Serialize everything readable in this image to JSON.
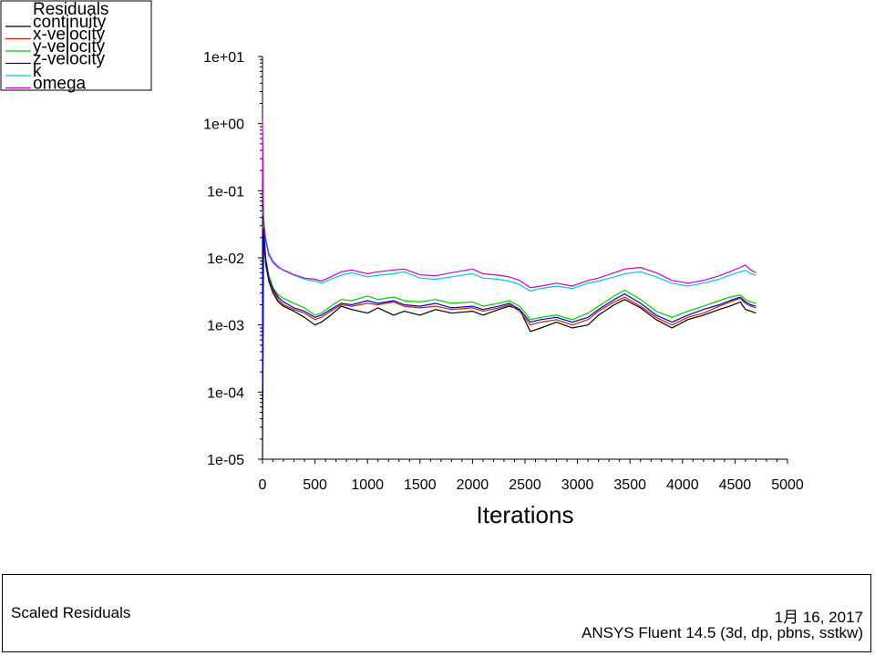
{
  "chart_data": {
    "type": "line",
    "title": "Scaled Residuals",
    "xlabel": "Iterations",
    "ylabel": "",
    "xlim": [
      0,
      5000
    ],
    "ylim": [
      1e-05,
      10
    ],
    "yscale": "log",
    "grid": false,
    "legend_title": "Residuals",
    "legend_position": "top-left",
    "x_ticks": [
      "0",
      "500",
      "1000",
      "1500",
      "2000",
      "2500",
      "3000",
      "3500",
      "4000",
      "4500",
      "5000"
    ],
    "y_ticks": [
      "1e+01",
      "1e+00",
      "1e-01",
      "1e-02",
      "1e-03",
      "1e-04",
      "1e-05"
    ],
    "series": [
      {
        "name": "continuity",
        "color": "#000000",
        "x": [
          0,
          10,
          30,
          60,
          100,
          150,
          200,
          300,
          400,
          500,
          560,
          650,
          750,
          850,
          1000,
          1100,
          1250,
          1350,
          1500,
          1650,
          1800,
          2000,
          2100,
          2250,
          2350,
          2450,
          2550,
          2650,
          2800,
          2950,
          3100,
          3200,
          3350,
          3450,
          3600,
          3750,
          3900,
          4050,
          4200,
          4350,
          4450,
          4550,
          4600,
          4650,
          4700
        ],
        "y": [
          1e-05,
          0.02,
          0.008,
          0.0045,
          0.003,
          0.0022,
          0.0019,
          0.0016,
          0.0013,
          0.001,
          0.0011,
          0.0014,
          0.0019,
          0.0017,
          0.0015,
          0.0018,
          0.0014,
          0.0016,
          0.0014,
          0.0017,
          0.0015,
          0.0016,
          0.0014,
          0.0017,
          0.0019,
          0.0017,
          0.0008,
          0.0009,
          0.0011,
          0.0009,
          0.001,
          0.0014,
          0.002,
          0.0024,
          0.0018,
          0.0012,
          0.0009,
          0.0012,
          0.0014,
          0.0017,
          0.0019,
          0.0022,
          0.0017,
          0.0016,
          0.0015
        ]
      },
      {
        "name": "x-velocity",
        "color": "#cc2200",
        "x": [
          0,
          10,
          30,
          60,
          100,
          150,
          200,
          300,
          400,
          500,
          560,
          650,
          750,
          850,
          1000,
          1100,
          1250,
          1350,
          1500,
          1650,
          1800,
          2000,
          2100,
          2250,
          2350,
          2450,
          2550,
          2650,
          2800,
          2950,
          3100,
          3200,
          3350,
          3450,
          3600,
          3750,
          3900,
          4050,
          4200,
          4350,
          4450,
          4550,
          4600,
          4650,
          4700
        ],
        "y": [
          0.03,
          0.025,
          0.009,
          0.0048,
          0.0032,
          0.0024,
          0.002,
          0.0017,
          0.0015,
          0.0012,
          0.0013,
          0.0016,
          0.002,
          0.0019,
          0.0021,
          0.002,
          0.0022,
          0.0019,
          0.0018,
          0.0019,
          0.0017,
          0.0018,
          0.0016,
          0.0018,
          0.002,
          0.0016,
          0.001,
          0.0011,
          0.0012,
          0.001,
          0.0012,
          0.0016,
          0.0022,
          0.0026,
          0.0019,
          0.0013,
          0.001,
          0.0013,
          0.0015,
          0.0019,
          0.0022,
          0.0025,
          0.0021,
          0.0019,
          0.0018
        ]
      },
      {
        "name": "y-velocity",
        "color": "#00cc00",
        "x": [
          0,
          10,
          30,
          60,
          100,
          150,
          200,
          300,
          400,
          500,
          560,
          650,
          750,
          850,
          1000,
          1100,
          1250,
          1350,
          1500,
          1650,
          1800,
          2000,
          2100,
          2250,
          2350,
          2450,
          2550,
          2650,
          2800,
          2950,
          3100,
          3200,
          3350,
          3450,
          3600,
          3750,
          3900,
          4050,
          4200,
          4350,
          4450,
          4550,
          4600,
          4650,
          4700
        ],
        "y": [
          0.5,
          0.03,
          0.01,
          0.0055,
          0.0036,
          0.0028,
          0.0025,
          0.0021,
          0.0018,
          0.0014,
          0.0015,
          0.0019,
          0.0024,
          0.0023,
          0.0027,
          0.0024,
          0.0026,
          0.0023,
          0.0022,
          0.0024,
          0.0021,
          0.0022,
          0.0019,
          0.0021,
          0.0023,
          0.0019,
          0.0012,
          0.0013,
          0.0014,
          0.0012,
          0.0015,
          0.0019,
          0.0027,
          0.0033,
          0.0024,
          0.0016,
          0.0013,
          0.0016,
          0.0019,
          0.0023,
          0.0026,
          0.0028,
          0.0024,
          0.0022,
          0.0021
        ]
      },
      {
        "name": "z-velocity",
        "color": "#0000cc",
        "x": [
          0,
          10,
          30,
          60,
          100,
          150,
          200,
          300,
          400,
          500,
          560,
          650,
          750,
          850,
          1000,
          1100,
          1250,
          1350,
          1500,
          1650,
          1800,
          2000,
          2100,
          2250,
          2350,
          2450,
          2550,
          2650,
          2800,
          2950,
          3100,
          3200,
          3350,
          3450,
          3600,
          3750,
          3900,
          4050,
          4200,
          4350,
          4450,
          4550,
          4600,
          4650,
          4700
        ],
        "y": [
          0.0001,
          0.028,
          0.0095,
          0.005,
          0.0034,
          0.0026,
          0.0022,
          0.0018,
          0.0016,
          0.0013,
          0.0014,
          0.0017,
          0.0021,
          0.002,
          0.0023,
          0.0021,
          0.0023,
          0.002,
          0.0019,
          0.0021,
          0.0018,
          0.0019,
          0.0017,
          0.0019,
          0.0021,
          0.0017,
          0.0011,
          0.0012,
          0.0013,
          0.0011,
          0.0013,
          0.0017,
          0.0024,
          0.0029,
          0.0021,
          0.0014,
          0.0011,
          0.0014,
          0.0017,
          0.002,
          0.0023,
          0.0026,
          0.0022,
          0.002,
          0.0019
        ]
      },
      {
        "name": "k",
        "color": "#00cccc",
        "x": [
          0,
          10,
          30,
          60,
          100,
          150,
          200,
          300,
          400,
          500,
          560,
          650,
          750,
          850,
          1000,
          1100,
          1250,
          1350,
          1500,
          1650,
          1800,
          2000,
          2100,
          2250,
          2350,
          2450,
          2550,
          2650,
          2800,
          2950,
          3100,
          3200,
          3350,
          3450,
          3600,
          3750,
          3900,
          4050,
          4200,
          4350,
          4450,
          4550,
          4600,
          4650,
          4700
        ],
        "y": [
          0.05,
          0.04,
          0.02,
          0.012,
          0.009,
          0.0075,
          0.0065,
          0.0055,
          0.0048,
          0.0045,
          0.0042,
          0.0048,
          0.0055,
          0.006,
          0.0052,
          0.0055,
          0.0058,
          0.0062,
          0.005,
          0.0048,
          0.0052,
          0.0058,
          0.005,
          0.0048,
          0.0045,
          0.004,
          0.0032,
          0.0035,
          0.0038,
          0.0035,
          0.0042,
          0.0045,
          0.0052,
          0.0058,
          0.0062,
          0.0052,
          0.0042,
          0.0038,
          0.0042,
          0.0048,
          0.0055,
          0.0062,
          0.0065,
          0.0058,
          0.0055
        ]
      },
      {
        "name": "omega",
        "color": "#cc00cc",
        "x": [
          0,
          10,
          30,
          60,
          100,
          150,
          200,
          300,
          400,
          500,
          560,
          650,
          750,
          850,
          1000,
          1100,
          1250,
          1350,
          1500,
          1650,
          1800,
          2000,
          2100,
          2250,
          2350,
          2450,
          2550,
          2650,
          2800,
          2950,
          3100,
          3200,
          3350,
          3450,
          3600,
          3750,
          3900,
          4050,
          4200,
          4350,
          4450,
          4550,
          4600,
          4650,
          4700
        ],
        "y": [
          1.1,
          0.035,
          0.018,
          0.011,
          0.0085,
          0.0072,
          0.0066,
          0.0056,
          0.005,
          0.0048,
          0.0045,
          0.0052,
          0.0062,
          0.0066,
          0.0058,
          0.0062,
          0.0066,
          0.0068,
          0.0056,
          0.0054,
          0.006,
          0.0068,
          0.0058,
          0.0055,
          0.0052,
          0.0046,
          0.0036,
          0.0038,
          0.0042,
          0.0038,
          0.0046,
          0.005,
          0.006,
          0.0068,
          0.0072,
          0.006,
          0.0046,
          0.0042,
          0.0046,
          0.0054,
          0.0062,
          0.0072,
          0.0078,
          0.0066,
          0.006
        ]
      }
    ]
  },
  "footer": {
    "title": "Scaled Residuals",
    "date": "1月 16, 2017",
    "software": "ANSYS Fluent 14.5 (3d, dp, pbns, sstkw)"
  }
}
